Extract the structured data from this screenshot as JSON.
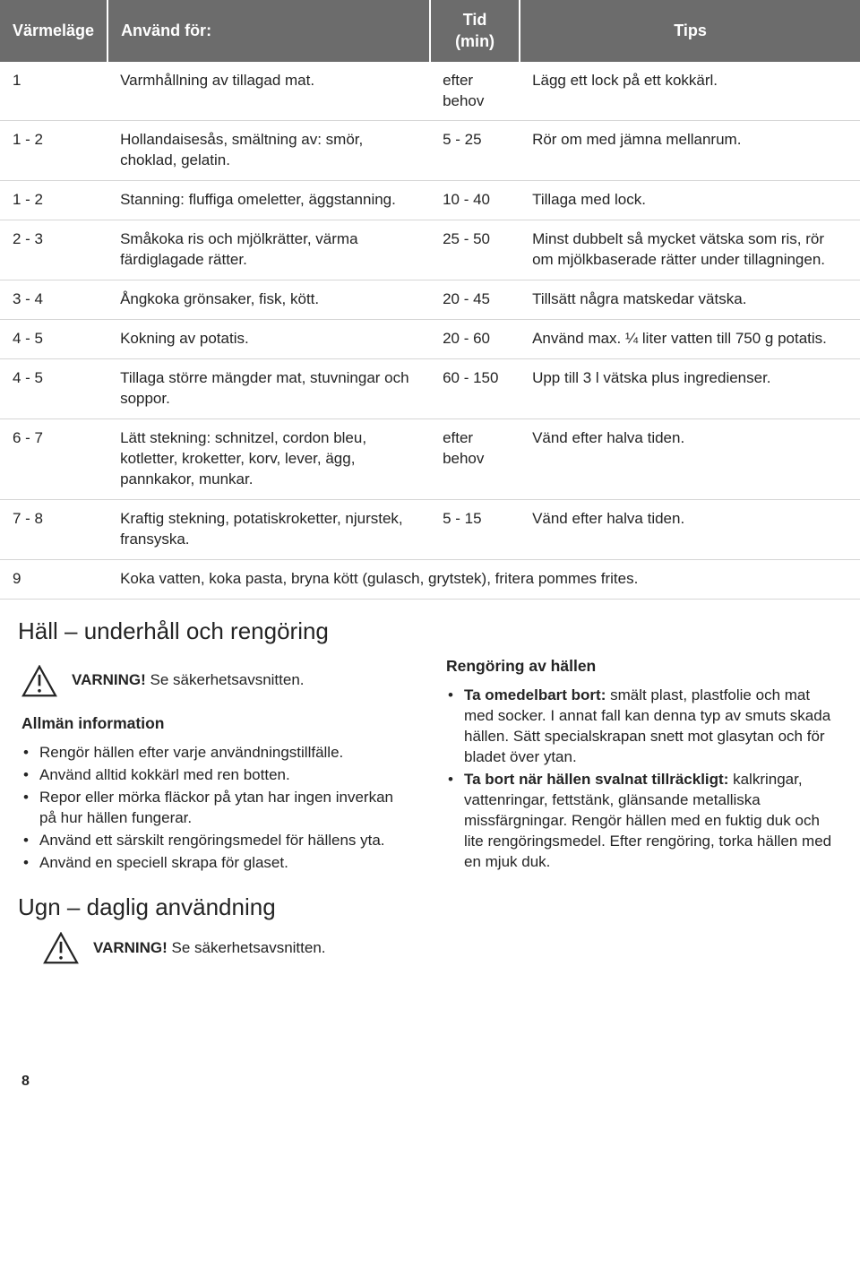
{
  "table": {
    "header_bg": "#6c6c6c",
    "header_fg": "#ffffff",
    "row_border": "#d6d6d6",
    "columns": [
      "Värmeläge",
      "Använd för:",
      "Tid (min)",
      "Tips"
    ],
    "rows": [
      {
        "lvl": "1",
        "use": "Varmhållning av tillagad mat.",
        "time": "efter behov",
        "tip": "Lägg ett lock på ett kokkärl."
      },
      {
        "lvl": "1 - 2",
        "use": "Hollandaisesås, smältning av: smör, choklad, gelatin.",
        "time": "5 - 25",
        "tip": "Rör om med jämna mellanrum."
      },
      {
        "lvl": "1 - 2",
        "use": "Stanning: fluffiga omeletter, äggstanning.",
        "time": "10 - 40",
        "tip": "Tillaga med lock."
      },
      {
        "lvl": "2 - 3",
        "use": "Småkoka ris och mjölkrätter, värma färdiglagade rätter.",
        "time": "25 - 50",
        "tip": "Minst dubbelt så mycket vätska som ris, rör om mjölkbaserade rätter under tillagningen."
      },
      {
        "lvl": "3 - 4",
        "use": "Ångkoka grönsaker, fisk, kött.",
        "time": "20 - 45",
        "tip": "Tillsätt några matskedar vätska."
      },
      {
        "lvl": "4 - 5",
        "use": "Kokning av potatis.",
        "time": "20 - 60",
        "tip": "Använd max. ¼ liter vatten till 750 g potatis."
      },
      {
        "lvl": "4 - 5",
        "use": "Tillaga större mängder mat, stuvningar och soppor.",
        "time": "60 - 150",
        "tip": "Upp till 3 l vätska plus ingredienser."
      },
      {
        "lvl": "6 - 7",
        "use": "Lätt stekning: schnitzel, cordon bleu, kotletter, kroketter, korv, lever, ägg, pannkakor, munkar.",
        "time": "efter behov",
        "tip": "Vänd efter halva tiden."
      },
      {
        "lvl": "7 - 8",
        "use": "Kraftig stekning, potatiskroketter, njurstek, fransyska.",
        "time": "5 - 15",
        "tip": "Vänd efter halva tiden."
      }
    ],
    "last_row": {
      "lvl": "9",
      "span": "Koka vatten, koka pasta, bryna kött (gulasch, grytstek), fritera pommes frites."
    }
  },
  "section1": {
    "title": "Häll – underhåll och rengöring",
    "warning_bold": "VARNING!",
    "warning_rest": " Se säkerhetsavsnitten.",
    "left": {
      "heading": "Allmän information",
      "items": [
        "Rengör hällen efter varje användningstillfälle.",
        "Använd alltid kokkärl med ren botten.",
        "Repor eller mörka fläckor på ytan har ingen inverkan på hur hällen fungerar.",
        "Använd ett särskilt rengöringsmedel för hällens yta.",
        "Använd en speciell skrapa för glaset."
      ]
    },
    "right": {
      "heading": "Rengöring av hällen",
      "items": [
        {
          "bold": "Ta omedelbart bort:",
          "rest": " smält plast, plastfolie och mat med socker. I annat fall kan denna typ av smuts skada hällen. Sätt specialskrapan snett mot glasytan och för bladet över ytan."
        },
        {
          "bold": "Ta bort när hällen svalnat tillräckligt:",
          "rest": " kalkringar, vattenringar, fettstänk, glänsande metalliska missfärgningar. Rengör hällen med en fuktig duk och lite rengöringsmedel. Efter rengöring, torka hällen med en mjuk duk."
        }
      ]
    }
  },
  "section2": {
    "title": "Ugn – daglig användning",
    "warning_bold": "VARNING!",
    "warning_rest": " Se säkerhetsavsnitten."
  },
  "page_number": "8"
}
